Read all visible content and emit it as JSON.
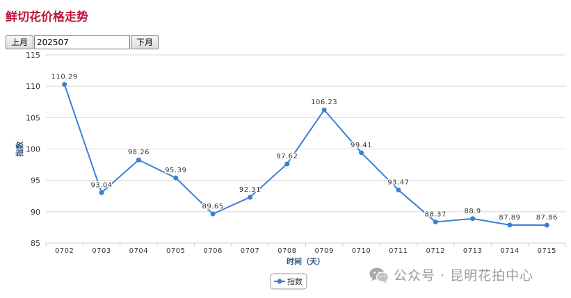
{
  "header": {
    "title": "鲜切花价格走势"
  },
  "toolbar": {
    "prev_label": "上月",
    "month_value": "202507",
    "next_label": "下月"
  },
  "colors": {
    "title": "#c0143c",
    "series": "#3a7fd5",
    "axis_text": "#2d4f7a",
    "grid": "#d8d8d8"
  },
  "watermark": {
    "text": "公众号 · 昆明花拍中心",
    "icon": "wechat-icon"
  },
  "chart_data": {
    "type": "line",
    "title": "",
    "xlabel": "时间（天）",
    "ylabel": "指数",
    "categories": [
      "0702",
      "0703",
      "0704",
      "0705",
      "0706",
      "0707",
      "0708",
      "0709",
      "0710",
      "0711",
      "0712",
      "0713",
      "0714",
      "0715"
    ],
    "series": [
      {
        "name": "指数",
        "values": [
          110.29,
          93.04,
          98.26,
          95.39,
          89.65,
          92.31,
          97.62,
          106.23,
          99.41,
          93.47,
          88.37,
          88.9,
          87.89,
          87.86
        ],
        "labels": [
          "110.29",
          "93.04",
          "98.26",
          "95.39",
          "89.65",
          "92.31",
          "97.62",
          "106.23",
          "99.41",
          "93.47",
          "88.37",
          "88.9",
          "87.89",
          "87.86"
        ]
      }
    ],
    "ylim": [
      85,
      115
    ],
    "yticks": [
      "85",
      "90",
      "95",
      "100",
      "105",
      "110",
      "115"
    ],
    "grid": true,
    "legend": "bottom-center"
  }
}
